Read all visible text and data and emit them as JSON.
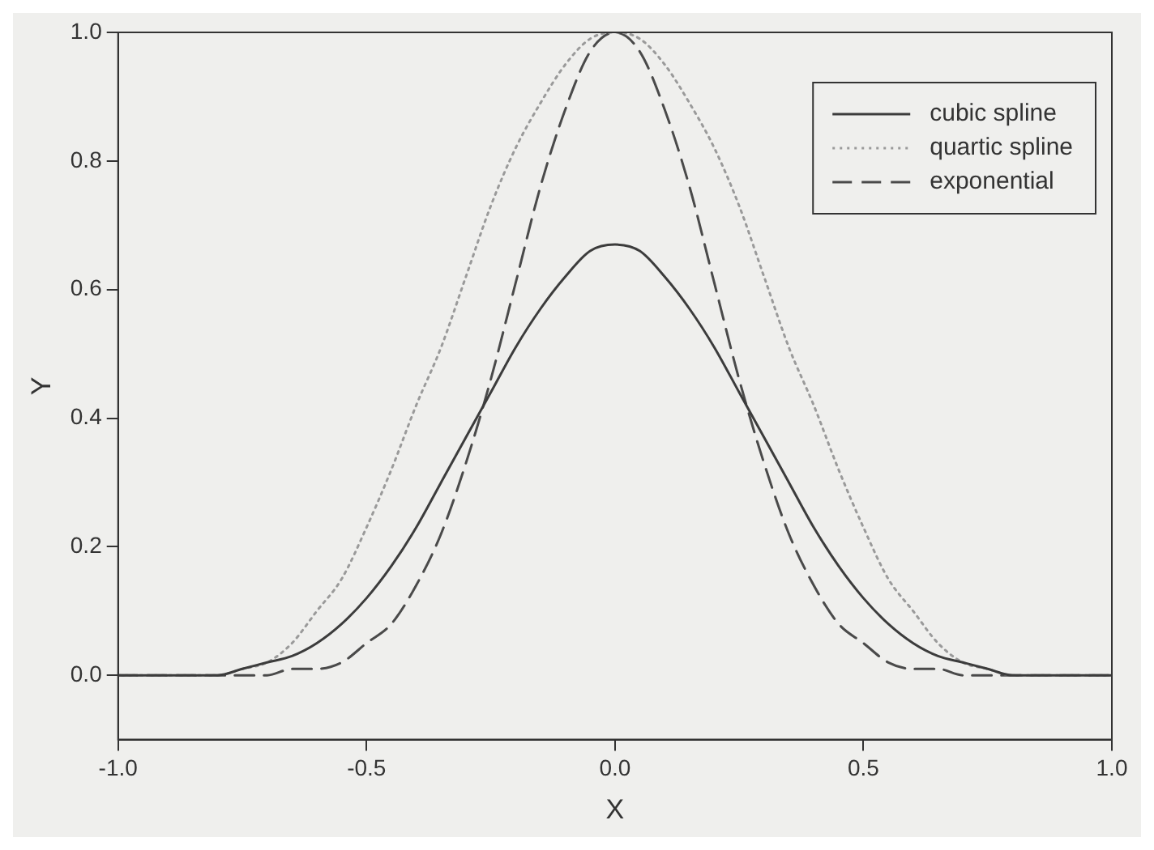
{
  "chart_data": {
    "type": "line",
    "xlabel": "X",
    "ylabel": "Y",
    "x": [
      -1,
      -0.95,
      -0.9,
      -0.85,
      -0.8,
      -0.75,
      -0.7,
      -0.65,
      -0.6,
      -0.55,
      -0.5,
      -0.45,
      -0.4,
      -0.35,
      -0.3,
      -0.25,
      -0.2,
      -0.15,
      -0.1,
      -0.05,
      0,
      0.05,
      0.1,
      0.15,
      0.2,
      0.25,
      0.3,
      0.35,
      0.4,
      0.45,
      0.5,
      0.55,
      0.6,
      0.65,
      0.7,
      0.75,
      0.8,
      0.85,
      0.9,
      0.95,
      1
    ],
    "series": [
      {
        "name": "cubic spline",
        "color": "#3c3c3c",
        "line_style": "solid",
        "values": [
          0,
          0,
          0,
          0,
          0,
          0.01,
          0.02,
          0.03,
          0.05,
          0.08,
          0.12,
          0.17,
          0.23,
          0.3,
          0.37,
          0.44,
          0.51,
          0.57,
          0.62,
          0.66,
          0.67,
          0.66,
          0.62,
          0.57,
          0.51,
          0.44,
          0.37,
          0.3,
          0.23,
          0.17,
          0.12,
          0.08,
          0.05,
          0.03,
          0.02,
          0.01,
          0,
          0,
          0,
          0,
          0
        ]
      },
      {
        "name": "quartic spline",
        "color": "#9a9a9a",
        "line_style": "dotted",
        "values": [
          0,
          0,
          0,
          0,
          0,
          0.01,
          0.02,
          0.05,
          0.1,
          0.15,
          0.23,
          0.32,
          0.42,
          0.51,
          0.62,
          0.73,
          0.82,
          0.89,
          0.95,
          0.99,
          1,
          0.99,
          0.95,
          0.89,
          0.82,
          0.73,
          0.62,
          0.51,
          0.42,
          0.32,
          0.23,
          0.15,
          0.1,
          0.05,
          0.02,
          0.01,
          0,
          0,
          0,
          0,
          0
        ]
      },
      {
        "name": "exponential",
        "color": "#4a4a4a",
        "line_style": "dashed",
        "values": [
          0,
          0,
          0,
          0,
          0,
          0,
          0,
          0.01,
          0.01,
          0.02,
          0.05,
          0.08,
          0.14,
          0.22,
          0.33,
          0.46,
          0.61,
          0.76,
          0.88,
          0.97,
          1,
          0.97,
          0.88,
          0.76,
          0.61,
          0.46,
          0.33,
          0.22,
          0.14,
          0.08,
          0.05,
          0.02,
          0.01,
          0.01,
          0,
          0,
          0,
          0,
          0,
          0,
          0
        ]
      }
    ],
    "xlim": [
      -1,
      1
    ],
    "xticks": [
      {
        "value": -1,
        "label": "-1.0"
      },
      {
        "value": -0.5,
        "label": "-0.5"
      },
      {
        "value": 0,
        "label": "0.0"
      },
      {
        "value": 0.5,
        "label": "0.5"
      },
      {
        "value": 1,
        "label": "1.0"
      }
    ],
    "ylim": [
      -0.1,
      1
    ],
    "yticks": [
      {
        "value": 0,
        "label": "0.0"
      },
      {
        "value": 0.2,
        "label": "0.2"
      },
      {
        "value": 0.4,
        "label": "0.4"
      },
      {
        "value": 0.6,
        "label": "0.6"
      },
      {
        "value": 0.8,
        "label": "0.8"
      },
      {
        "value": 1,
        "label": "1.0"
      }
    ],
    "legend": "top right"
  }
}
